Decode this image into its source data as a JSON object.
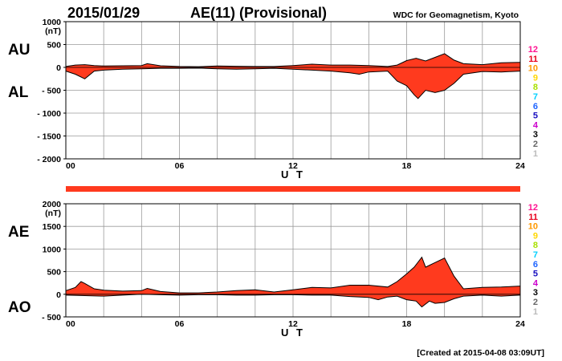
{
  "header": {
    "date": "2015/01/29",
    "title": "AE(11) (Provisional)",
    "source": "WDC for Geomagnetism, Kyoto"
  },
  "footer": {
    "created": "[Created at 2015-04-08 03:09UT]"
  },
  "colors": {
    "fill": "#ff3a1e",
    "outline": "#000000",
    "grid": "#9a9a9a",
    "bar": "#ff3a1e"
  },
  "legend_numbers": [
    {
      "label": "12",
      "color": "#ff1493"
    },
    {
      "label": "11",
      "color": "#e8001c"
    },
    {
      "label": "10",
      "color": "#ff9900"
    },
    {
      "label": "9",
      "color": "#ffd700"
    },
    {
      "label": "8",
      "color": "#a8e000"
    },
    {
      "label": "7",
      "color": "#00d0ff"
    },
    {
      "label": "6",
      "color": "#1e64ff"
    },
    {
      "label": "5",
      "color": "#1a10c0"
    },
    {
      "label": "4",
      "color": "#cc00cc"
    },
    {
      "label": "3",
      "color": "#000000"
    },
    {
      "label": "2",
      "color": "#666666"
    },
    {
      "label": "1",
      "color": "#bbbbbb"
    }
  ],
  "chart_data": [
    {
      "type": "area",
      "panel": "top",
      "side_labels": [
        "AU",
        "AL"
      ],
      "unit": "(nT)",
      "xlabel": "U T",
      "xlim": [
        0,
        24
      ],
      "xticks": [
        "00",
        "06",
        "12",
        "18",
        "24"
      ],
      "ylim": [
        -2000,
        1000
      ],
      "yticks": [
        "1000",
        "500",
        "0",
        "- 500",
        "- 1000",
        "- 1500",
        "- 2000"
      ],
      "grid": true,
      "upper_series": {
        "name": "AU",
        "x": [
          0,
          0.5,
          1,
          1.5,
          2,
          3,
          4,
          4.3,
          5,
          6,
          7,
          8,
          9,
          10,
          11,
          12,
          13,
          14,
          15,
          16,
          17,
          17.5,
          18,
          18.5,
          19,
          19.5,
          20,
          20.5,
          21,
          22,
          23,
          24
        ],
        "y": [
          20,
          50,
          60,
          40,
          30,
          35,
          40,
          80,
          35,
          20,
          15,
          30,
          25,
          20,
          20,
          40,
          70,
          50,
          50,
          40,
          20,
          50,
          150,
          200,
          140,
          220,
          300,
          160,
          80,
          60,
          100,
          110
        ]
      },
      "lower_series": {
        "name": "AL",
        "x": [
          0,
          0.5,
          1,
          1.5,
          2,
          3,
          4,
          5,
          6,
          7,
          8,
          9,
          10,
          11,
          12,
          13,
          14,
          15,
          15.5,
          16,
          17,
          17.5,
          18,
          18.4,
          18.6,
          19,
          19.5,
          20,
          20.5,
          21,
          22,
          23,
          24
        ],
        "y": [
          -80,
          -150,
          -250,
          -80,
          -60,
          -40,
          -30,
          -20,
          -20,
          -15,
          -30,
          -40,
          -30,
          -20,
          -40,
          -60,
          -80,
          -120,
          -150,
          -100,
          -80,
          -300,
          -400,
          -600,
          -680,
          -500,
          -550,
          -500,
          -350,
          -150,
          -90,
          -100,
          -80
        ]
      }
    },
    {
      "type": "area",
      "panel": "bottom",
      "side_labels": [
        "AE",
        "AO"
      ],
      "unit": "(nT)",
      "xlabel": "U T",
      "xlim": [
        0,
        24
      ],
      "xticks": [
        "00",
        "06",
        "12",
        "18",
        "24"
      ],
      "ylim": [
        -500,
        2000
      ],
      "yticks": [
        "2000",
        "1500",
        "1000",
        "500",
        "0",
        "- 500"
      ],
      "grid": true,
      "upper_series": {
        "name": "AE",
        "x": [
          0,
          0.5,
          0.8,
          1,
          1.5,
          2,
          3,
          4,
          4.3,
          5,
          6,
          7,
          8,
          9,
          10,
          11,
          12,
          13,
          14,
          15,
          16,
          17,
          17.5,
          18,
          18.4,
          18.8,
          19,
          19.5,
          20,
          20.5,
          21,
          22,
          23,
          24
        ],
        "y": [
          80,
          150,
          280,
          240,
          120,
          90,
          70,
          80,
          130,
          60,
          30,
          30,
          50,
          80,
          100,
          50,
          100,
          150,
          140,
          200,
          200,
          160,
          280,
          450,
          600,
          820,
          600,
          700,
          800,
          400,
          120,
          150,
          160,
          180
        ]
      },
      "lower_series": {
        "name": "AO",
        "x": [
          0,
          1,
          2,
          3,
          4,
          5,
          6,
          7,
          8,
          9,
          10,
          11,
          12,
          13,
          14,
          15,
          16,
          16.5,
          17,
          17.5,
          18,
          18.5,
          18.8,
          19.2,
          19.5,
          20,
          20.5,
          21,
          22,
          23,
          24
        ],
        "y": [
          -20,
          -30,
          -40,
          -20,
          0,
          -10,
          -20,
          -10,
          -10,
          -20,
          -20,
          -10,
          -10,
          -20,
          -20,
          -50,
          -70,
          -120,
          -60,
          -40,
          -120,
          -150,
          -280,
          -150,
          -200,
          -180,
          -100,
          -40,
          -20,
          -40,
          -20
        ]
      }
    }
  ]
}
